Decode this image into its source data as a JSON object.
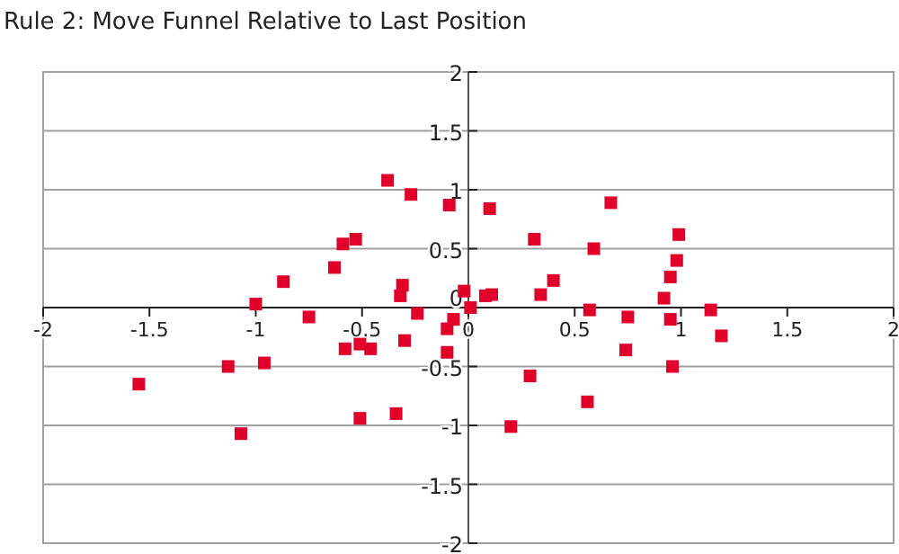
{
  "chart_data": {
    "type": "scatter",
    "title": "Rule 2: Move Funnel Relative to Last Position",
    "xlim": [
      -2,
      2
    ],
    "ylim": [
      -2,
      2
    ],
    "xticks": [
      -2,
      -1.5,
      -1,
      -0.5,
      0,
      0.5,
      1,
      1.5,
      2
    ],
    "yticks": [
      -2,
      -1.5,
      -1,
      -0.5,
      0,
      0.5,
      1,
      1.5,
      2
    ],
    "grid": "y",
    "marker": "square",
    "series": [
      {
        "color": "#e0002a",
        "x": [
          -0.38,
          -0.27,
          -0.09,
          -0.53,
          -0.59,
          -0.63,
          -0.87,
          -0.31,
          -0.32,
          -0.02,
          -1.0,
          0.1,
          0.67,
          0.31,
          0.59,
          0.99,
          0.98,
          0.95,
          0.4,
          0.34,
          0.08,
          0.11,
          0.92,
          0.01,
          0.57,
          1.14,
          0.75,
          0.95,
          -0.07,
          -0.75,
          -0.24,
          -0.1,
          -0.3,
          -0.1,
          -0.58,
          -0.51,
          -0.46,
          -0.96,
          -1.13,
          -1.55,
          -0.51,
          -0.34,
          -1.07,
          0.74,
          0.96,
          1.19,
          0.29,
          0.56,
          0.2
        ],
        "values": [
          1.08,
          0.96,
          0.87,
          0.58,
          0.54,
          0.34,
          0.22,
          0.19,
          0.1,
          0.14,
          0.03,
          0.84,
          0.89,
          0.58,
          0.5,
          0.62,
          0.4,
          0.26,
          0.23,
          0.11,
          0.1,
          0.11,
          0.08,
          0.0,
          -0.02,
          -0.02,
          -0.08,
          -0.1,
          -0.1,
          -0.08,
          -0.05,
          -0.18,
          -0.28,
          -0.38,
          -0.35,
          -0.31,
          -0.35,
          -0.47,
          -0.5,
          -0.65,
          -0.94,
          -0.9,
          -1.07,
          -0.36,
          -0.5,
          -0.24,
          -0.58,
          -0.8,
          -1.01
        ]
      }
    ]
  }
}
